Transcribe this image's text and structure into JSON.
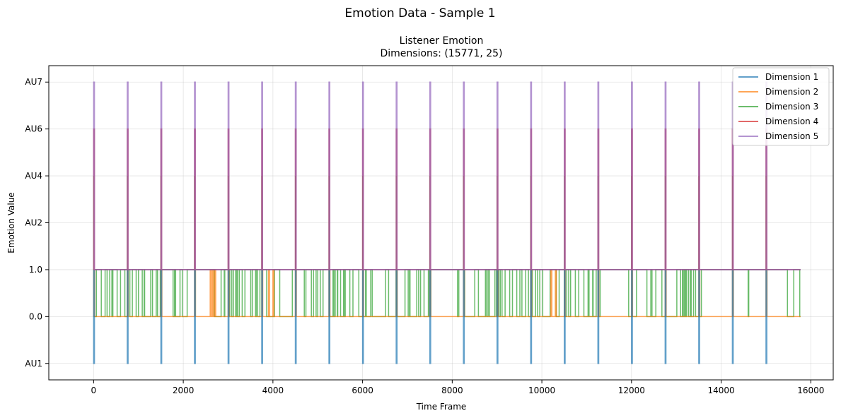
{
  "figure": {
    "suptitle": "Emotion Data - Sample 1"
  },
  "chart_data": {
    "type": "line",
    "title_line1": "Listener Emotion",
    "title_line2": "Dimensions: (15771, 25)",
    "xlabel": "Time Frame",
    "ylabel": "Emotion Value",
    "xlim": [
      -1000,
      16500
    ],
    "x_ticks": [
      0,
      2000,
      4000,
      6000,
      8000,
      10000,
      12000,
      14000,
      16000
    ],
    "y_categories": [
      "AU1",
      "0.0",
      "1.0",
      "AU2",
      "AU4",
      "AU6",
      "AU7"
    ],
    "grid": true,
    "legend_position": "top-right",
    "spike_frames": [
      0,
      750,
      1500,
      2250,
      3000,
      3750,
      4500,
      5250,
      6000,
      6750,
      7500,
      8250,
      9000,
      9750,
      10500,
      11250,
      12000,
      12750,
      13500,
      14250,
      15000
    ],
    "series": [
      {
        "name": "Dimension 1",
        "color": "#1f77b4",
        "baseline": "1.0",
        "spike_to": "AU1",
        "x_end": 15771
      },
      {
        "name": "Dimension 2",
        "color": "#ff7f0e",
        "baseline": "0.0",
        "toggles_to": "1.0",
        "toggle_frames": [
          0,
          750,
          1500,
          2250,
          2600,
          2650,
          2700,
          3000,
          3750,
          3900,
          4000,
          4500,
          5250,
          6000,
          6750,
          7500,
          8250,
          9000,
          9750,
          10200,
          10300,
          10500,
          11250,
          12000,
          12750,
          13500,
          14250,
          15000
        ],
        "x_end": 15771
      },
      {
        "name": "Dimension 3",
        "color": "#2ca02c",
        "baseline": "0.0",
        "toggles_to": "1.0",
        "x_end": 15771
      },
      {
        "name": "Dimension 4",
        "color": "#d62728",
        "baseline": "1.0",
        "spike_to": "AU6",
        "x_end": 15771
      },
      {
        "name": "Dimension 5",
        "color": "#9467bd",
        "baseline": "1.0",
        "spike_to": "AU7",
        "x_end": 15771
      }
    ]
  }
}
